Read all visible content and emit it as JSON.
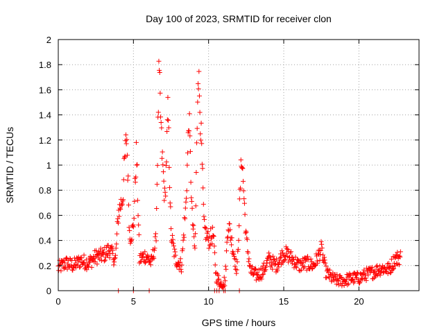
{
  "chart_data": {
    "type": "scatter",
    "title": "Day 100 of 2023, SRMTID for receiver clon",
    "xlabel": "GPS time / hours",
    "ylabel": "SRMTID / TECUs",
    "xlim": [
      0,
      24
    ],
    "ylim": [
      0,
      2
    ],
    "xticks": [
      0,
      5,
      10,
      15,
      20
    ],
    "yticks": [
      0,
      0.2,
      0.4,
      0.6,
      0.8,
      1,
      1.2,
      1.4,
      1.6,
      1.8,
      2
    ],
    "grid": true,
    "marker": "+",
    "series": [
      {
        "name": "SRMTID",
        "color": "#ff0000",
        "envelope": [
          [
            0.0,
            0.18
          ],
          [
            0.5,
            0.22
          ],
          [
            1.0,
            0.2
          ],
          [
            1.5,
            0.24
          ],
          [
            2.0,
            0.22
          ],
          [
            2.5,
            0.27
          ],
          [
            3.0,
            0.28
          ],
          [
            3.4,
            0.33
          ],
          [
            3.8,
            0.24
          ],
          [
            4.0,
            0.62
          ],
          [
            4.3,
            0.75
          ],
          [
            4.4,
            1.0
          ],
          [
            4.55,
            1.25
          ],
          [
            4.75,
            0.42
          ],
          [
            5.0,
            0.5
          ],
          [
            5.2,
            1.12
          ],
          [
            5.4,
            0.25
          ],
          [
            5.8,
            0.28
          ],
          [
            6.2,
            0.22
          ],
          [
            6.5,
            0.4
          ],
          [
            6.7,
            1.75
          ],
          [
            6.9,
            1.1
          ],
          [
            7.1,
            0.7
          ],
          [
            7.3,
            1.45
          ],
          [
            7.5,
            0.45
          ],
          [
            7.8,
            0.25
          ],
          [
            8.2,
            0.2
          ],
          [
            8.5,
            0.7
          ],
          [
            8.7,
            1.4
          ],
          [
            8.9,
            0.6
          ],
          [
            9.1,
            0.3
          ],
          [
            9.3,
            1.8
          ],
          [
            9.5,
            1.25
          ],
          [
            9.7,
            0.5
          ],
          [
            10.0,
            0.4
          ],
          [
            10.3,
            0.45
          ],
          [
            10.5,
            0.12
          ],
          [
            10.8,
            0.05
          ],
          [
            11.1,
            0.08
          ],
          [
            11.3,
            0.55
          ],
          [
            11.6,
            0.35
          ],
          [
            11.9,
            0.15
          ],
          [
            12.2,
            1.1
          ],
          [
            12.5,
            0.42
          ],
          [
            12.8,
            0.15
          ],
          [
            13.2,
            0.12
          ],
          [
            13.6,
            0.15
          ],
          [
            14.0,
            0.25
          ],
          [
            14.5,
            0.2
          ],
          [
            15.0,
            0.3
          ],
          [
            15.3,
            0.28
          ],
          [
            15.6,
            0.25
          ],
          [
            16.0,
            0.2
          ],
          [
            16.5,
            0.22
          ],
          [
            17.0,
            0.2
          ],
          [
            17.5,
            0.33
          ],
          [
            17.8,
            0.15
          ],
          [
            18.2,
            0.1
          ],
          [
            18.6,
            0.08
          ],
          [
            19.0,
            0.08
          ],
          [
            19.5,
            0.1
          ],
          [
            20.0,
            0.1
          ],
          [
            20.5,
            0.13
          ],
          [
            21.0,
            0.15
          ],
          [
            21.5,
            0.18
          ],
          [
            22.0,
            0.17
          ],
          [
            22.4,
            0.25
          ],
          [
            22.8,
            0.27
          ]
        ],
        "noise": 0.07,
        "zero_points": [
          4.0,
          5.0,
          6.05,
          10.4,
          10.55,
          10.7,
          11.0,
          11.1,
          12.05
        ],
        "sample_step": 0.03
      }
    ]
  }
}
